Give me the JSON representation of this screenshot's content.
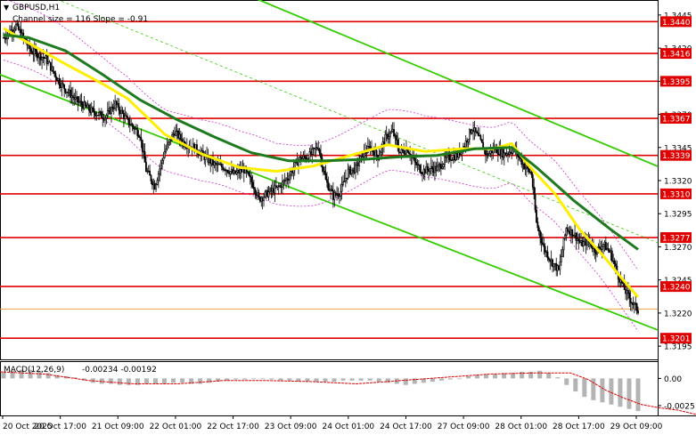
{
  "chart_data": [
    {
      "type": "candlestick",
      "symbol": "GBPUSD,H1",
      "channel_label": "Channel size = 116 Slope = -0.91",
      "ylim": [
        1.3185,
        1.3455
      ],
      "y_ticks": [
        "1.3445",
        "1.3420",
        "1.3395",
        "1.3370",
        "1.3345",
        "1.3320",
        "1.3295",
        "1.3270",
        "1.3245",
        "1.3220",
        "1.3195"
      ],
      "tick_values": [
        1.3445,
        1.342,
        1.3395,
        1.337,
        1.3345,
        1.332,
        1.3295,
        1.327,
        1.3245,
        1.322,
        1.3195
      ],
      "levels": [
        {
          "label": "1.3440",
          "value": 1.344
        },
        {
          "label": "1.3416",
          "value": 1.3416
        },
        {
          "label": "1.3395",
          "value": 1.3395
        },
        {
          "label": "1.3367",
          "value": 1.3367
        },
        {
          "label": "1.3339",
          "value": 1.3339
        },
        {
          "label": "1.3310",
          "value": 1.331
        },
        {
          "label": "1.3277",
          "value": 1.3277
        },
        {
          "label": "1.3240",
          "value": 1.324
        },
        {
          "label": "1.3201",
          "value": 1.3201
        }
      ],
      "current_price": 1.3223,
      "x_labels": [
        "20 Oct 2025",
        "20 Oct 17:00",
        "21 Oct 09:00",
        "22 Oct 01:00",
        "22 Oct 17:00",
        "23 Oct 09:00",
        "24 Oct 01:00",
        "24 Oct 17:00",
        "27 Oct 09:00",
        "28 Oct 01:00",
        "28 Oct 17:00",
        "29 Oct 09:00"
      ],
      "close_path": [
        [
          0,
          1.3428
        ],
        [
          10,
          1.3437
        ],
        [
          22,
          1.3418
        ],
        [
          34,
          1.3412
        ],
        [
          46,
          1.3393
        ],
        [
          58,
          1.3381
        ],
        [
          70,
          1.3373
        ],
        [
          82,
          1.3368
        ],
        [
          90,
          1.3378
        ],
        [
          100,
          1.3365
        ],
        [
          110,
          1.3355
        ],
        [
          115,
          1.3328
        ],
        [
          122,
          1.3316
        ],
        [
          130,
          1.3342
        ],
        [
          138,
          1.3357
        ],
        [
          146,
          1.3348
        ],
        [
          154,
          1.3345
        ],
        [
          162,
          1.3338
        ],
        [
          170,
          1.3332
        ],
        [
          178,
          1.333
        ],
        [
          186,
          1.3325
        ],
        [
          194,
          1.3328
        ],
        [
          202,
          1.3316
        ],
        [
          206,
          1.3306
        ],
        [
          214,
          1.3311
        ],
        [
          222,
          1.3315
        ],
        [
          230,
          1.3323
        ],
        [
          238,
          1.3336
        ],
        [
          246,
          1.3338
        ],
        [
          254,
          1.3346
        ],
        [
          260,
          1.332
        ],
        [
          266,
          1.3308
        ],
        [
          272,
          1.3312
        ],
        [
          278,
          1.3327
        ],
        [
          284,
          1.3329
        ],
        [
          290,
          1.334
        ],
        [
          296,
          1.3345
        ],
        [
          302,
          1.3338
        ],
        [
          308,
          1.3352
        ],
        [
          314,
          1.3357
        ],
        [
          320,
          1.3341
        ],
        [
          326,
          1.3344
        ],
        [
          332,
          1.3333
        ],
        [
          338,
          1.3327
        ],
        [
          344,
          1.3329
        ],
        [
          350,
          1.3329
        ],
        [
          358,
          1.3337
        ],
        [
          366,
          1.3339
        ],
        [
          372,
          1.3347
        ],
        [
          378,
          1.336
        ],
        [
          384,
          1.3351
        ],
        [
          390,
          1.3339
        ],
        [
          396,
          1.3344
        ],
        [
          404,
          1.334
        ],
        [
          412,
          1.3344
        ],
        [
          420,
          1.3331
        ],
        [
          426,
          1.3325
        ],
        [
          430,
          1.3288
        ],
        [
          436,
          1.3269
        ],
        [
          442,
          1.3259
        ],
        [
          448,
          1.3252
        ],
        [
          454,
          1.3284
        ],
        [
          460,
          1.328
        ],
        [
          466,
          1.3272
        ],
        [
          472,
          1.3274
        ],
        [
          478,
          1.3267
        ],
        [
          484,
          1.3272
        ],
        [
          490,
          1.3265
        ],
        [
          496,
          1.3248
        ],
        [
          502,
          1.3236
        ],
        [
          508,
          1.3227
        ],
        [
          512,
          1.3222
        ]
      ],
      "ma_slow_path": [
        [
          0,
          1.343
        ],
        [
          20,
          1.3428
        ],
        [
          50,
          1.3418
        ],
        [
          80,
          1.34
        ],
        [
          110,
          1.3381
        ],
        [
          140,
          1.3366
        ],
        [
          170,
          1.3353
        ],
        [
          200,
          1.3341
        ],
        [
          230,
          1.3335
        ],
        [
          260,
          1.3335
        ],
        [
          290,
          1.3336
        ],
        [
          320,
          1.3338
        ],
        [
          350,
          1.3339
        ],
        [
          380,
          1.3344
        ],
        [
          410,
          1.3345
        ],
        [
          430,
          1.333
        ],
        [
          460,
          1.3305
        ],
        [
          490,
          1.3283
        ],
        [
          512,
          1.3268
        ]
      ],
      "ma_fast_path": [
        [
          0,
          1.3435
        ],
        [
          20,
          1.3424
        ],
        [
          50,
          1.3408
        ],
        [
          80,
          1.3393
        ],
        [
          100,
          1.3382
        ],
        [
          130,
          1.3355
        ],
        [
          160,
          1.334
        ],
        [
          190,
          1.333
        ],
        [
          220,
          1.3327
        ],
        [
          250,
          1.3331
        ],
        [
          280,
          1.3339
        ],
        [
          310,
          1.3347
        ],
        [
          340,
          1.3342
        ],
        [
          370,
          1.3344
        ],
        [
          395,
          1.3344
        ],
        [
          410,
          1.3348
        ],
        [
          425,
          1.333
        ],
        [
          445,
          1.331
        ],
        [
          465,
          1.3283
        ],
        [
          485,
          1.3262
        ],
        [
          500,
          1.3245
        ],
        [
          512,
          1.3232
        ]
      ],
      "channel_upper": [
        [
          0,
          1.3538
        ],
        [
          512,
          1.3337
        ]
      ],
      "channel_lower": [
        [
          0,
          1.34
        ],
        [
          512,
          1.3213
        ]
      ]
    },
    {
      "type": "bar",
      "title": "MACD(12,26,9)",
      "values_label": "-0.00234 -0.00192",
      "ylim": [
        -0.0034,
        0.0015
      ],
      "y_ticks": [
        "0.00",
        "-0.0025"
      ],
      "tick_values": [
        0.0,
        -0.0025
      ],
      "histogram": [
        0.0006,
        0.0007,
        0.0008,
        0.0008,
        0.0007,
        0.0005,
        0.0003,
        0.0002,
        0.0001,
        -0.0002,
        -0.0004,
        -0.0005,
        -0.0005,
        -0.0006,
        -0.0006,
        -0.0006,
        -0.0005,
        -0.0005,
        -0.0005,
        -0.0004,
        -0.0004,
        -0.0005,
        -0.0005,
        -0.0004,
        -0.0003,
        -0.0002,
        -0.0001,
        -0.0001,
        0.0,
        0.0,
        -0.0001,
        -0.0002,
        -0.0002,
        -0.0003,
        -0.0003,
        -0.0003,
        -0.0003,
        -0.0003,
        -0.0002,
        -0.0002,
        -0.0002,
        -0.0002,
        -0.0003,
        -0.0004,
        -0.0005,
        -0.0006,
        -0.0005,
        -0.0004,
        -0.0003,
        -0.0002,
        -0.0001,
        0.0,
        0.0002,
        0.0003,
        0.0004,
        0.0004,
        0.0005,
        0.0005,
        0.0006,
        0.0006,
        0.0007,
        0.0005,
        0.0001,
        -0.0006,
        -0.0012,
        -0.0017,
        -0.002,
        -0.0022,
        -0.0024,
        -0.0026,
        -0.0028,
        -0.003
      ],
      "signal_path": [
        [
          0,
          0.0006
        ],
        [
          50,
          0.0004
        ],
        [
          100,
          -0.0002
        ],
        [
          150,
          -0.0005
        ],
        [
          200,
          -0.0005
        ],
        [
          250,
          -0.0002
        ],
        [
          300,
          -0.0002
        ],
        [
          350,
          -0.0003
        ],
        [
          400,
          -0.0005
        ],
        [
          450,
          -0.0002
        ],
        [
          500,
          0.0001
        ],
        [
          550,
          0.0004
        ],
        [
          600,
          0.0005
        ],
        [
          640,
          0.0005
        ],
        [
          660,
          -0.0001
        ],
        [
          680,
          -0.0011
        ],
        [
          700,
          -0.0018
        ],
        [
          720,
          -0.0024
        ],
        [
          740,
          -0.0027
        ],
        [
          760,
          -0.0029
        ],
        [
          781,
          -0.0033
        ]
      ]
    }
  ],
  "colors": {
    "candle": "#000000",
    "level": "#e00000",
    "level_label_bg": "#e00000",
    "level_label_text": "#ffffff",
    "channel": "#33cc00",
    "ma_slow": "#ffee00",
    "ma_fast": "#1e7a1e",
    "envelope": "#cc33cc",
    "current_price": "#e8a23a",
    "macd_hist": "#b4b4b4",
    "macd_signal": "#e00000"
  }
}
